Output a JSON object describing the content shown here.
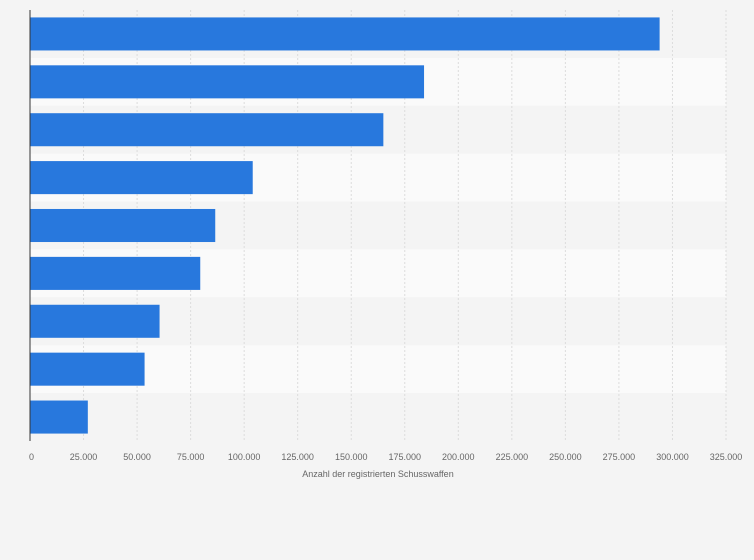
{
  "chart_data": {
    "type": "bar",
    "orientation": "horizontal",
    "xlabel": "Anzahl der registrierten Schusswaffen",
    "ylabel": "",
    "title": "",
    "categories": [
      "",
      "",
      "",
      "",
      "",
      "",
      "",
      "",
      ""
    ],
    "values": [
      294000,
      184000,
      165000,
      104000,
      86500,
      79500,
      60500,
      53500,
      27000
    ],
    "xlim": [
      0,
      325000
    ],
    "xticks": [
      0,
      25000,
      50000,
      75000,
      100000,
      125000,
      150000,
      175000,
      200000,
      225000,
      250000,
      275000,
      300000,
      325000
    ],
    "xtick_labels": [
      "0",
      "25.000",
      "50.000",
      "75.000",
      "100.000",
      "125.000",
      "150.000",
      "175.000",
      "200.000",
      "225.000",
      "250.000",
      "275.000",
      "300.000",
      "325.000"
    ],
    "grid": true,
    "bar_color": "#2878dd",
    "band_colors": [
      "#f4f4f4",
      "#fafafa"
    ],
    "gridline_color": "#dcdcdc",
    "axis_color": "#333333"
  }
}
